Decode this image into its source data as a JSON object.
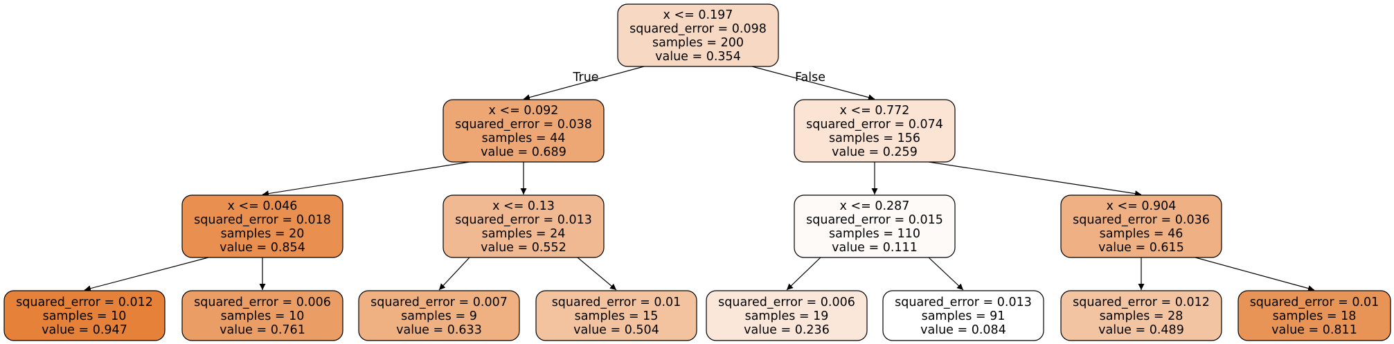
{
  "tree": {
    "edge_labels": {
      "true_label": "True",
      "false_label": "False"
    },
    "nodes": [
      {
        "id": 0,
        "lines": [
          "x <= 0.197",
          "squared_error = 0.098",
          "samples = 200",
          "value = 0.354"
        ],
        "fill": "#f7d8c2"
      },
      {
        "id": 1,
        "lines": [
          "x <= 0.092",
          "squared_error = 0.038",
          "samples = 44",
          "value = 0.689"
        ],
        "fill": "#eda774"
      },
      {
        "id": 2,
        "lines": [
          "x <= 0.046",
          "squared_error = 0.018",
          "samples = 20",
          "value = 0.854"
        ],
        "fill": "#e99050"
      },
      {
        "id": 3,
        "lines": [
          "squared_error = 0.012",
          "samples = 10",
          "value = 0.947"
        ],
        "fill": "#e58139"
      },
      {
        "id": 4,
        "lines": [
          "squared_error = 0.006",
          "samples = 10",
          "value = 0.761"
        ],
        "fill": "#eb9d66"
      },
      {
        "id": 5,
        "lines": [
          "x <= 0.13",
          "squared_error = 0.013",
          "samples = 24",
          "value = 0.552"
        ],
        "fill": "#f1b991"
      },
      {
        "id": 6,
        "lines": [
          "squared_error = 0.007",
          "samples = 9",
          "value = 0.633"
        ],
        "fill": "#efb082"
      },
      {
        "id": 7,
        "lines": [
          "squared_error = 0.01",
          "samples = 15",
          "value = 0.504"
        ],
        "fill": "#f3c3a0"
      },
      {
        "id": 8,
        "lines": [
          "x <= 0.772",
          "squared_error = 0.074",
          "samples = 156",
          "value = 0.259"
        ],
        "fill": "#fbe4d4"
      },
      {
        "id": 9,
        "lines": [
          "x <= 0.287",
          "squared_error = 0.015",
          "samples = 110",
          "value = 0.111"
        ],
        "fill": "#fefaf7"
      },
      {
        "id": 10,
        "lines": [
          "squared_error = 0.006",
          "samples = 19",
          "value = 0.236"
        ],
        "fill": "#fbe7d9"
      },
      {
        "id": 11,
        "lines": [
          "squared_error = 0.013",
          "samples = 91",
          "value = 0.084"
        ],
        "fill": "#ffffff"
      },
      {
        "id": 12,
        "lines": [
          "x <= 0.904",
          "squared_error = 0.036",
          "samples = 46",
          "value = 0.615"
        ],
        "fill": "#efb083"
      },
      {
        "id": 13,
        "lines": [
          "squared_error = 0.012",
          "samples = 28",
          "value = 0.489"
        ],
        "fill": "#f3c4a1"
      },
      {
        "id": 14,
        "lines": [
          "squared_error = 0.01",
          "samples = 18",
          "value = 0.811"
        ],
        "fill": "#e89456"
      }
    ],
    "edges": [
      {
        "from": 0,
        "to": 1,
        "label": "true_label"
      },
      {
        "from": 0,
        "to": 8,
        "label": "false_label"
      },
      {
        "from": 1,
        "to": 2
      },
      {
        "from": 1,
        "to": 5
      },
      {
        "from": 2,
        "to": 3
      },
      {
        "from": 2,
        "to": 4
      },
      {
        "from": 5,
        "to": 6
      },
      {
        "from": 5,
        "to": 7
      },
      {
        "from": 8,
        "to": 9
      },
      {
        "from": 8,
        "to": 12
      },
      {
        "from": 9,
        "to": 10
      },
      {
        "from": 9,
        "to": 11
      },
      {
        "from": 12,
        "to": 13
      },
      {
        "from": 12,
        "to": 14
      }
    ]
  }
}
